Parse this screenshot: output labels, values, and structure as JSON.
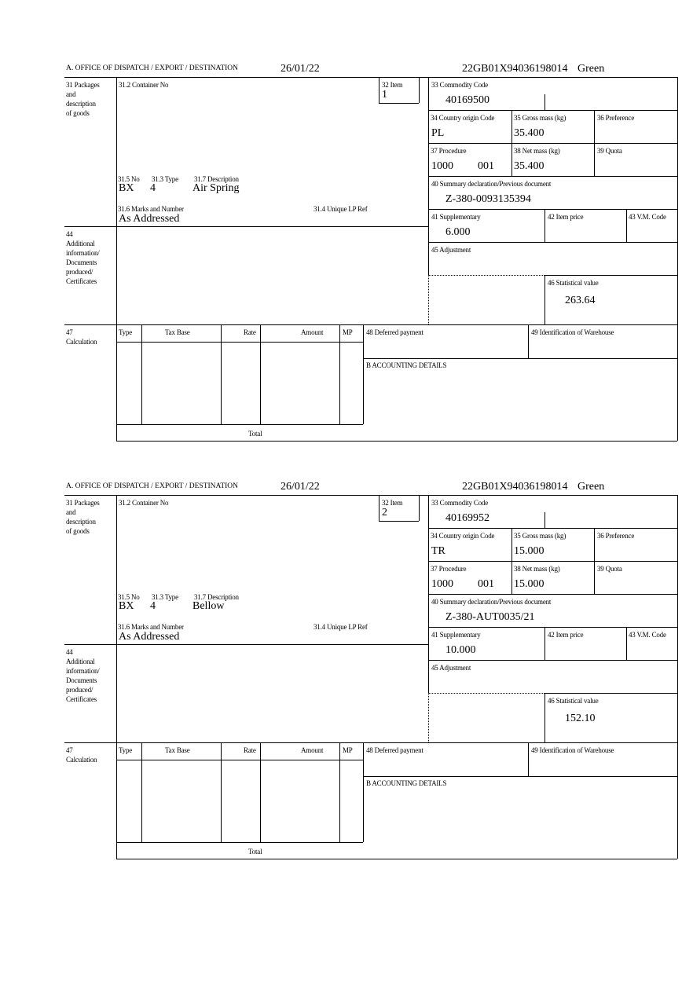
{
  "labels": {
    "office": "A.  OFFICE OF DISPATCH / EXPORT / DESTINATION",
    "packages": "31 Packages\nand\ndescription\nof goods",
    "container": "31.2 Container No",
    "item": "32 Item",
    "commodity": "33 Commodity Code",
    "country": "34 Country origin Code",
    "gross": "35 Gross mass (kg)",
    "preference": "36 Preference",
    "procedure": "37 Procedure",
    "net": "38 Net mass (kg)",
    "quota": "39 Quota",
    "summary": "40 Summary declaration/Previous document",
    "no": "31.5 No",
    "type": "31.3 Type",
    "description": "31.7 Description",
    "marks": "31.6 Marks and Number",
    "unique": "31.4 Unique LP Ref",
    "supplementary": "41 Supplementary",
    "item_price": "42 Item price",
    "vm_code": "43 V.M. Code",
    "additional": "44\nAdditional\ninformation/\nDocuments\nproduced/\nCertificates",
    "adjustment": "45 Adjustment",
    "statistical": "46 Statistical value",
    "calculation": "47\nCalculation",
    "col_type": "Type",
    "col_tax_base": "Tax Base",
    "col_rate": "Rate",
    "col_amount": "Amount",
    "col_mp": "MP",
    "deferred": "48 Deferred payment",
    "warehouse": "49 Identification of Warehouse",
    "accounting": "B ACCOUNTING DETAILS",
    "total": "Total"
  },
  "items": [
    {
      "date": "26/01/22",
      "reference": "22GB01X94036198014",
      "route": "Green",
      "item_no": "1",
      "commodity_code": "40169500",
      "country_origin": "PL",
      "gross_mass": "35.400",
      "procedure": "1000",
      "procedure_add": "001",
      "net_mass": "35.400",
      "previous_document": "Z-380-0093135394",
      "package_kind": "BX",
      "package_count": "4",
      "description": "Air Spring",
      "marks": "As Addressed",
      "supplementary": "6.000",
      "statistical_value": "263.64"
    },
    {
      "date": "26/01/22",
      "reference": "22GB01X94036198014",
      "route": "Green",
      "item_no": "2",
      "commodity_code": "40169952",
      "country_origin": "TR",
      "gross_mass": "15.000",
      "procedure": "1000",
      "procedure_add": "001",
      "net_mass": "15.000",
      "previous_document": "Z-380-AUT0035/21",
      "package_kind": "BX",
      "package_count": "4",
      "description": "Bellow",
      "marks": "As Addressed",
      "supplementary": "10.000",
      "statistical_value": "152.10"
    }
  ]
}
